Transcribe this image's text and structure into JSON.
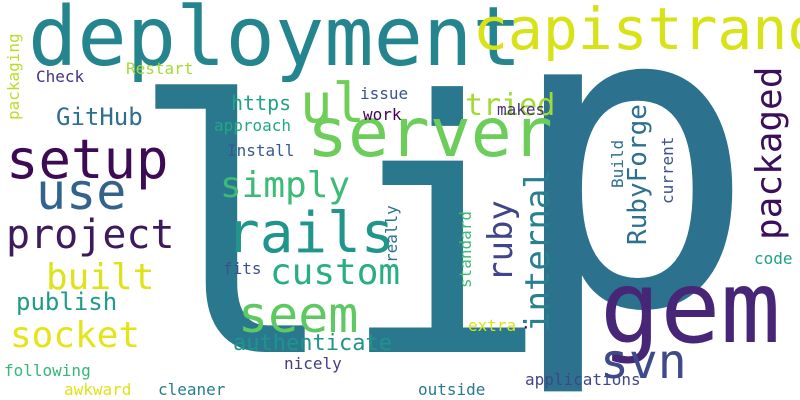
{
  "words": [
    {
      "text": "li",
      "color": "#2a788e",
      "rotated": false
    },
    {
      "text": "p",
      "color": "#2c728e",
      "rotated": false
    },
    {
      "text": "deployment",
      "color": "#25858e",
      "rotated": false
    },
    {
      "text": "capistrano",
      "color": "#d8e219",
      "rotated": false
    },
    {
      "text": "server",
      "color": "#6ccd5a",
      "rotated": false
    },
    {
      "text": "gem",
      "color": "#482677",
      "rotated": false
    },
    {
      "text": "setup",
      "color": "#3d0a54",
      "rotated": false
    },
    {
      "text": "use",
      "color": "#33638d",
      "rotated": false
    },
    {
      "text": "rails",
      "color": "#1f958b",
      "rotated": false
    },
    {
      "text": "ul",
      "color": "#6ece58",
      "rotated": false
    },
    {
      "text": "project",
      "color": "#3e1a5c",
      "rotated": false
    },
    {
      "text": "seem",
      "color": "#5ec962",
      "rotated": false
    },
    {
      "text": "svn",
      "color": "#3e4a89",
      "rotated": false
    },
    {
      "text": "simply",
      "color": "#3bbb75",
      "rotated": false
    },
    {
      "text": "custom",
      "color": "#29af7f",
      "rotated": false
    },
    {
      "text": "built",
      "color": "#dde318",
      "rotated": false
    },
    {
      "text": "socket",
      "color": "#e5e419",
      "rotated": false
    },
    {
      "text": "packaged",
      "color": "#3c0f5a",
      "rotated": true
    },
    {
      "text": "internal",
      "color": "#27808e",
      "rotated": true
    },
    {
      "text": "ruby",
      "color": "#414487",
      "rotated": true
    },
    {
      "text": "RubyForge",
      "color": "#2d718e",
      "rotated": true
    },
    {
      "text": "tried",
      "color": "#a2da37",
      "rotated": false
    },
    {
      "text": "GitHub",
      "color": "#2e6e8e",
      "rotated": false
    },
    {
      "text": "publish",
      "color": "#1e9b8a",
      "rotated": false
    },
    {
      "text": "authenticate",
      "color": "#1f938c",
      "rotated": false
    },
    {
      "text": "https",
      "color": "#20a486",
      "rotated": false
    },
    {
      "text": "approach",
      "color": "#22a884",
      "rotated": false
    },
    {
      "text": "Install",
      "color": "#38598c",
      "rotated": false
    },
    {
      "text": "work",
      "color": "#440154",
      "rotated": false
    },
    {
      "text": "issue",
      "color": "#3a548c",
      "rotated": false
    },
    {
      "text": "makes",
      "color": "#46327e",
      "rotated": false
    },
    {
      "text": "Check",
      "color": "#46337e",
      "rotated": false
    },
    {
      "text": "Restart",
      "color": "#a5db36",
      "rotated": false
    },
    {
      "text": "packaging",
      "color": "#b8de29",
      "rotated": true
    },
    {
      "text": "standard",
      "color": "#3dbc74",
      "rotated": true
    },
    {
      "text": "really",
      "color": "#2c738e",
      "rotated": true
    },
    {
      "text": "Build",
      "color": "#2d718e",
      "rotated": true
    },
    {
      "text": "current",
      "color": "#3b528b",
      "rotated": true
    },
    {
      "text": "fits",
      "color": "#3b528b",
      "rotated": false
    },
    {
      "text": "code",
      "color": "#1fa188",
      "rotated": false
    },
    {
      "text": "extra",
      "color": "#dae319",
      "rotated": false
    },
    {
      "text": "nicely",
      "color": "#433e85",
      "rotated": false
    },
    {
      "text": "following",
      "color": "#35b779",
      "rotated": false
    },
    {
      "text": "applications",
      "color": "#404688",
      "rotated": false
    },
    {
      "text": "awkward",
      "color": "#dde318",
      "rotated": false
    },
    {
      "text": "cleaner",
      "color": "#287d8e",
      "rotated": false
    },
    {
      "text": "outside",
      "color": "#297a8e",
      "rotated": false
    },
    {
      "text": "·",
      "color": "#440154",
      "rotated": false
    }
  ]
}
